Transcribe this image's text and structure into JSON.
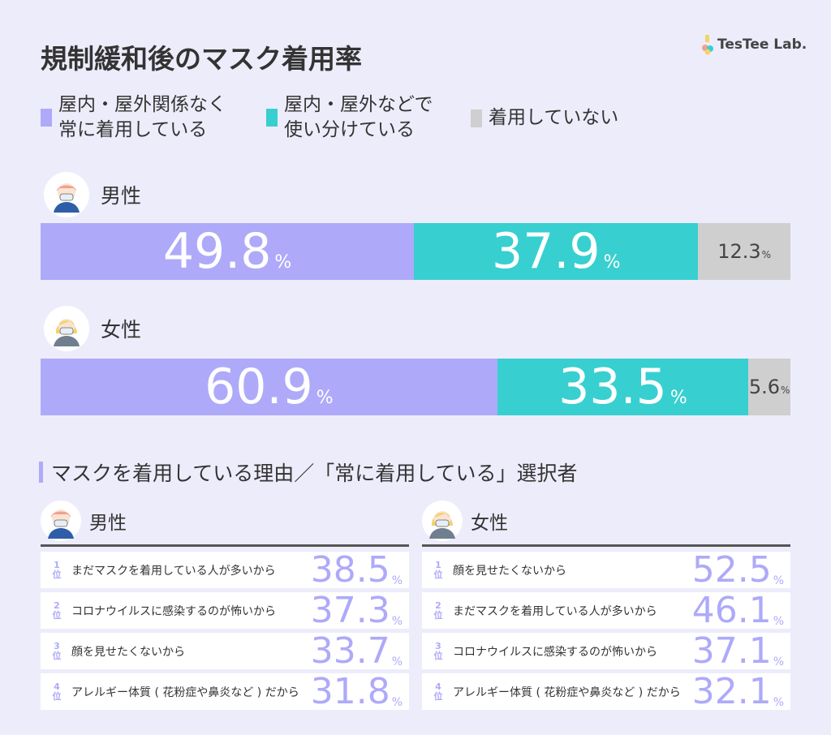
{
  "title": "規制緩和後のマスク着用率",
  "logo": "TesTee Lab.",
  "colors": {
    "always": "#aeaaf9",
    "sometimes": "#38cfd0",
    "none": "#cfcfcf",
    "bg": "#edecfb"
  },
  "chart_data": {
    "type": "bar",
    "orientation": "horizontal-stacked",
    "title": "規制緩和後のマスク着用率",
    "legend": [
      "屋内・屋外関係なく常に着用している",
      "屋内・屋外などで使い分けている",
      "着用していない"
    ],
    "categories": [
      "男性",
      "女性"
    ],
    "series": [
      {
        "name": "屋内・屋外関係なく常に着用している",
        "values": [
          49.8,
          60.9
        ]
      },
      {
        "name": "屋内・屋外などで使い分けている",
        "values": [
          37.9,
          33.5
        ]
      },
      {
        "name": "着用していない",
        "values": [
          12.3,
          5.6
        ]
      }
    ],
    "unit": "%"
  },
  "legend": {
    "l1a": "屋内・屋外関係なく",
    "l1b": "常に着用している",
    "l2a": "屋内・屋外などで",
    "l2b": "使い分けている",
    "l3": "着用していない"
  },
  "ranking": {
    "title": "マスクを着用している理由／「常に着用している」選択者",
    "rank_suffix": "位",
    "male": {
      "label": "男性",
      "items": [
        {
          "rank": "1",
          "reason": "まだマスクを着用している人が多いから",
          "value": "38.5"
        },
        {
          "rank": "2",
          "reason": "コロナウイルスに感染するのが怖いから",
          "value": "37.3"
        },
        {
          "rank": "3",
          "reason": "顔を見せたくないから",
          "value": "33.7"
        },
        {
          "rank": "4",
          "reason": "アレルギー体質 ( 花粉症や鼻炎など ) だから",
          "value": "31.8"
        }
      ]
    },
    "female": {
      "label": "女性",
      "items": [
        {
          "rank": "1",
          "reason": "顔を見せたくないから",
          "value": "52.5"
        },
        {
          "rank": "2",
          "reason": "まだマスクを着用している人が多いから",
          "value": "46.1"
        },
        {
          "rank": "3",
          "reason": "コロナウイルスに感染するのが怖いから",
          "value": "37.1"
        },
        {
          "rank": "4",
          "reason": "アレルギー体質 ( 花粉症や鼻炎など ) だから",
          "value": "32.1"
        }
      ]
    }
  },
  "pct_sign": "%"
}
